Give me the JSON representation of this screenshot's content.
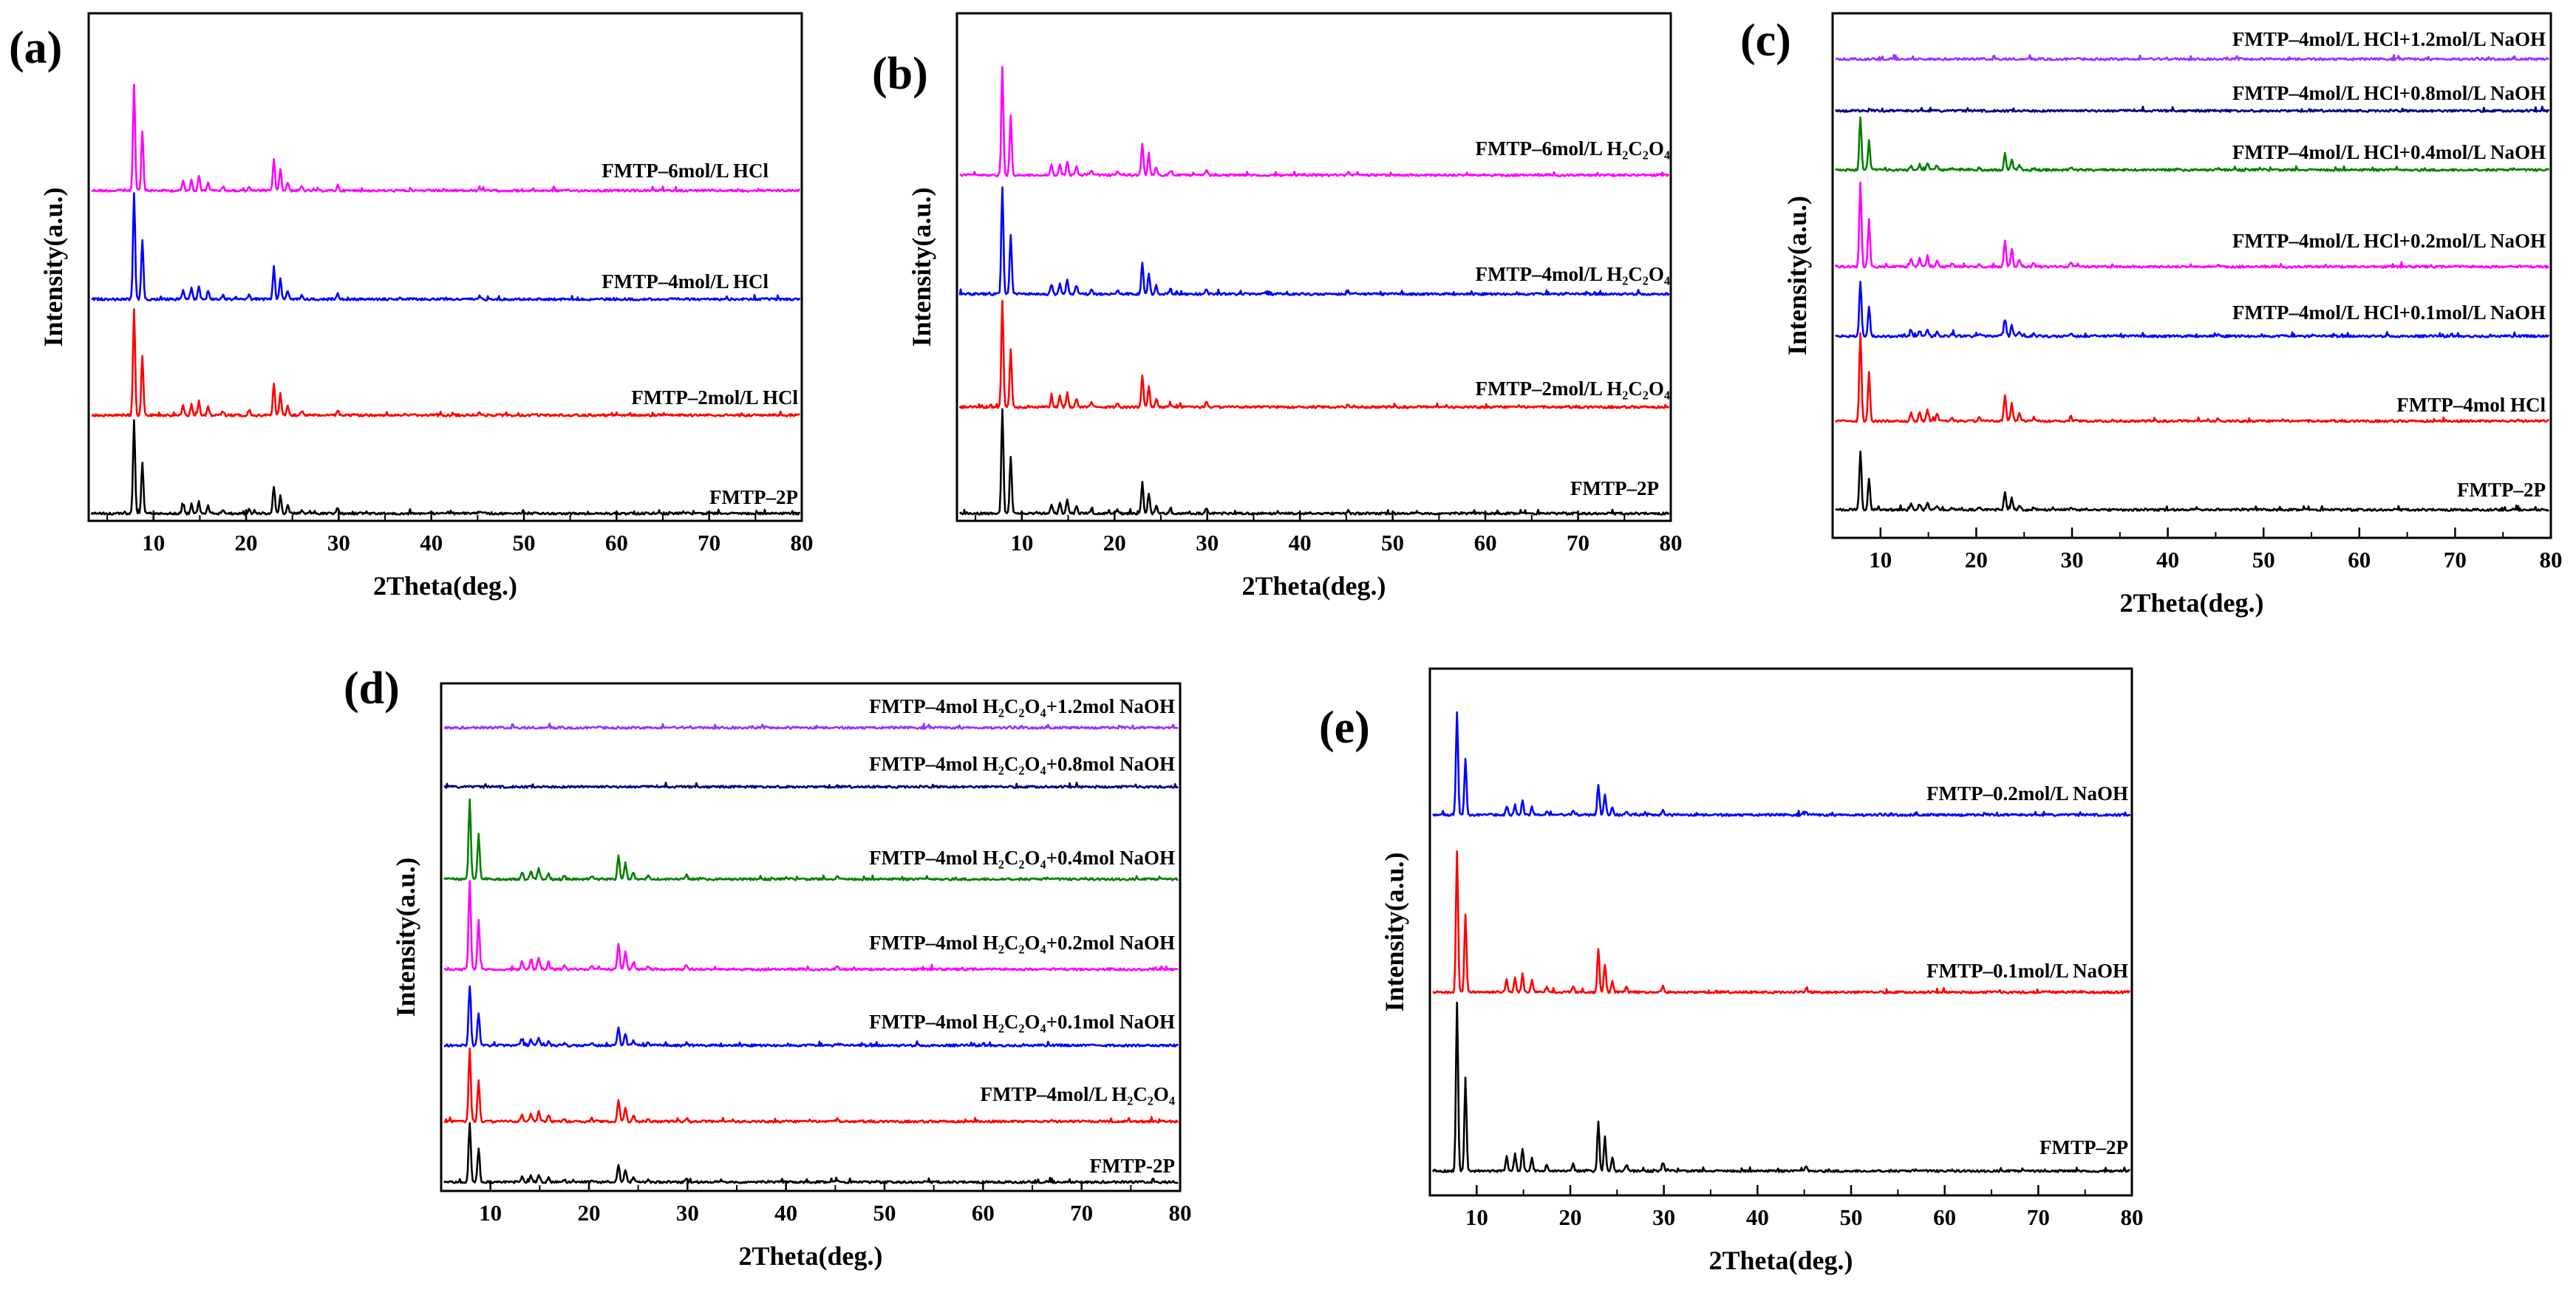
{
  "chart_data": [
    {
      "type": "line",
      "panel": "(a)",
      "xlabel": "2Theta(deg.)",
      "ylabel": "Intensity(a.u.)",
      "xlim": [
        3,
        80
      ],
      "xticks": [
        10,
        20,
        30,
        40,
        50,
        60,
        70,
        80
      ],
      "grid": false,
      "series": [
        {
          "name": "FMTP–6mol/L HCl",
          "color": "#ff00ff",
          "peak_scale": 1.0
        },
        {
          "name": "FMTP–4mol/L HCl",
          "color": "#0000ff",
          "peak_scale": 1.0
        },
        {
          "name": "FMTP–2mol/L HCl",
          "color": "#ff0000",
          "peak_scale": 1.0
        },
        {
          "name": "FMTP–2P",
          "color": "#000000",
          "peak_scale": 1.0
        }
      ]
    },
    {
      "type": "line",
      "panel": "(b)",
      "xlabel": "2Theta(deg.)",
      "ylabel": "Intensity(a.u.)",
      "xlim": [
        3,
        80
      ],
      "xticks": [
        10,
        20,
        30,
        40,
        50,
        60,
        70,
        80
      ],
      "grid": false,
      "series": [
        {
          "name": "FMTP–6mol/L H₂C₂O₄",
          "color": "#ff00ff",
          "peak_scale": 1.0
        },
        {
          "name": "FMTP–4mol/L H₂C₂O₄",
          "color": "#0000ff",
          "peak_scale": 1.0
        },
        {
          "name": "FMTP–2mol/L H₂C₂O₄",
          "color": "#ff0000",
          "peak_scale": 1.0
        },
        {
          "name": "FMTP–2P",
          "color": "#000000",
          "peak_scale": 1.0
        }
      ]
    },
    {
      "type": "line",
      "panel": "(c)",
      "xlabel": "2Theta(deg.)",
      "ylabel": "Intensity(a.u.)",
      "xlim": [
        5,
        80
      ],
      "xticks": [
        10,
        20,
        30,
        40,
        50,
        60,
        70,
        80
      ],
      "grid": false,
      "series": [
        {
          "name": "FMTP–4mol/L HCl+1.2mol/L NaOH",
          "color": "#9933ff",
          "peak_scale": 0.0
        },
        {
          "name": "FMTP–4mol/L HCl+0.8mol/L NaOH",
          "color": "#000080",
          "peak_scale": 0.0
        },
        {
          "name": "FMTP–4mol/L HCl+0.4mol/L NaOH",
          "color": "#008000",
          "peak_scale": 1.0
        },
        {
          "name": "FMTP–4mol/L HCl+0.2mol/L NaOH",
          "color": "#ff00ff",
          "peak_scale": 1.0
        },
        {
          "name": "FMTP–4mol/L HCl+0.1mol/L NaOH",
          "color": "#0000ff",
          "peak_scale": 0.85
        },
        {
          "name": "FMTP–4mol HCl",
          "color": "#ff0000",
          "peak_scale": 1.0
        },
        {
          "name": "FMTP–2P",
          "color": "#000000",
          "peak_scale": 0.85
        }
      ]
    },
    {
      "type": "line",
      "panel": "(d)",
      "xlabel": "2Theta(deg.)",
      "ylabel": "Intensity(a.u.)",
      "xlim": [
        5,
        80
      ],
      "xticks": [
        10,
        20,
        30,
        40,
        50,
        60,
        70,
        80
      ],
      "grid": false,
      "series": [
        {
          "name": "FMTP–4mol H₂C₂O₄+1.2mol NaOH",
          "color": "#9933ff",
          "peak_scale": 0.0
        },
        {
          "name": "FMTP–4mol H₂C₂O₄+0.8mol NaOH",
          "color": "#000080",
          "peak_scale": 0.0
        },
        {
          "name": "FMTP–4mol H₂C₂O₄+0.4mol NaOH",
          "color": "#008000",
          "peak_scale": 1.0
        },
        {
          "name": "FMTP–4mol H₂C₂O₄+0.2mol NaOH",
          "color": "#ff00ff",
          "peak_scale": 1.0
        },
        {
          "name": "FMTP–4mol H₂C₂O₄+0.1mol NaOH",
          "color": "#0000ff",
          "peak_scale": 0.9
        },
        {
          "name": "FMTP–4mol/L H₂C₂O₄",
          "color": "#ff0000",
          "peak_scale": 0.9
        },
        {
          "name": "FMTP-2P",
          "color": "#000000",
          "peak_scale": 0.85
        }
      ]
    },
    {
      "type": "line",
      "panel": "(e)",
      "xlabel": "2Theta(deg.)",
      "ylabel": "Intensity(a.u.)",
      "xlim": [
        5,
        80
      ],
      "xticks": [
        10,
        20,
        30,
        40,
        50,
        60,
        70,
        80
      ],
      "grid": false,
      "series": [
        {
          "name": "FMTP–0.2mol/L NaOH",
          "color": "#0000ff",
          "peak_scale": 1.0
        },
        {
          "name": "FMTP–0.1mol/L NaOH",
          "color": "#ff0000",
          "peak_scale": 1.0
        },
        {
          "name": "FMTP–2P",
          "color": "#000000",
          "peak_scale": 1.0
        }
      ]
    }
  ],
  "peak_positions_deg": [
    7.9,
    8.8,
    13.2,
    14.1,
    14.9,
    15.9,
    17.5,
    20.3,
    23.0,
    23.7,
    24.5,
    26.0,
    29.9,
    45.2
  ],
  "peak_relative_intensity": [
    1.0,
    0.55,
    0.09,
    0.1,
    0.13,
    0.08,
    0.04,
    0.04,
    0.3,
    0.2,
    0.08,
    0.04,
    0.05,
    0.03
  ]
}
